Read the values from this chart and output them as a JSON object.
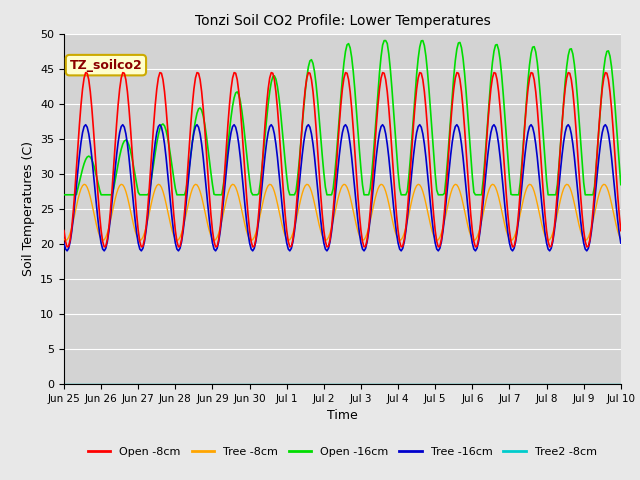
{
  "title": "Tonzi Soil CO2 Profile: Lower Temperatures",
  "xlabel": "Time",
  "ylabel": "Soil Temperatures (C)",
  "annotation": "TZ_soilco2",
  "ylim": [
    0,
    50
  ],
  "yticks": [
    0,
    5,
    10,
    15,
    20,
    25,
    30,
    35,
    40,
    45,
    50
  ],
  "xtick_labels": [
    "Jun 25",
    "Jun 26",
    "Jun 27",
    "Jun 28",
    "Jun 29",
    "Jun 30",
    "Jul 1",
    "Jul 2",
    "Jul 3",
    "Jul 4",
    "Jul 5",
    "Jul 6",
    "Jul 7",
    "Jul 8",
    "Jul 9",
    "Jul 10"
  ],
  "colors": {
    "open_8cm": "#ff0000",
    "tree_8cm": "#ffa500",
    "open_16cm": "#00dd00",
    "tree_16cm": "#0000cc",
    "tree2_8cm": "#00cccc"
  },
  "legend_labels": [
    "Open -8cm",
    "Tree -8cm",
    "Open -16cm",
    "Tree -16cm",
    "Tree2 -8cm"
  ],
  "fig_bg_color": "#e8e8e8",
  "ax_bg_color": "#d3d3d3",
  "grid_color": "#ffffff"
}
